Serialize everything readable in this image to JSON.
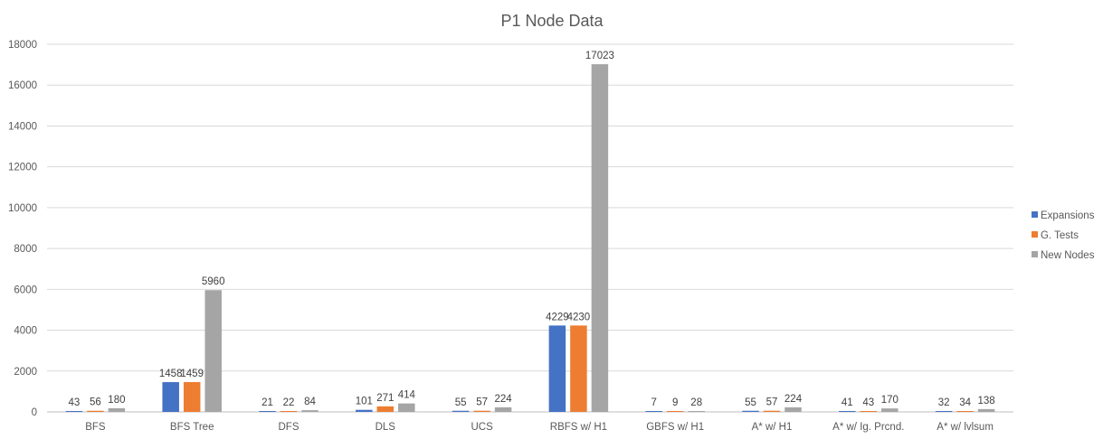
{
  "chart_data": {
    "type": "bar",
    "title": "P1 Node Data",
    "xlabel": "",
    "ylabel": "",
    "ylim": [
      0,
      18000
    ],
    "yticks": [
      0,
      2000,
      4000,
      6000,
      8000,
      10000,
      12000,
      14000,
      16000,
      18000
    ],
    "grid": true,
    "legend_position": "right",
    "categories": [
      "BFS",
      "BFS Tree",
      "DFS",
      "DLS",
      "UCS",
      "RBFS w/ H1",
      "GBFS w/ H1",
      "A* w/ H1",
      "A* w/ Ig. Prcnd.",
      "A* w/ lvlsum"
    ],
    "series": [
      {
        "name": "Expansions",
        "color": "#4472C4",
        "values": [
          43,
          1458,
          21,
          101,
          55,
          4229,
          7,
          55,
          41,
          32
        ]
      },
      {
        "name": "G. Tests",
        "color": "#ED7D31",
        "values": [
          56,
          1459,
          22,
          271,
          57,
          4230,
          9,
          57,
          43,
          34
        ]
      },
      {
        "name": "New Nodes",
        "color": "#A5A5A5",
        "values": [
          180,
          5960,
          84,
          414,
          224,
          17023,
          28,
          224,
          170,
          138
        ]
      }
    ]
  }
}
